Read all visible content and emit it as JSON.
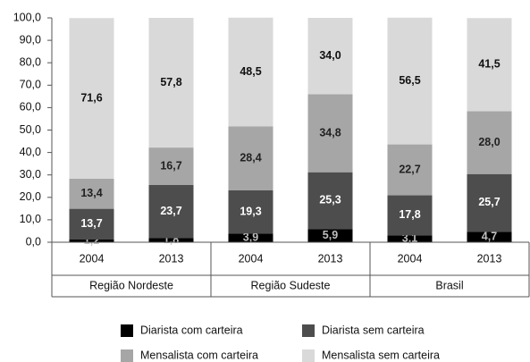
{
  "chart_data": {
    "type": "stacked_bar",
    "categories": [
      "2004",
      "2013",
      "2004",
      "2013",
      "2004",
      "2013"
    ],
    "groups": [
      "Região Nordeste",
      "Região Sudeste",
      "Brasil"
    ],
    "series": [
      {
        "name": "Diarista com carteira",
        "color": "#000000",
        "label_color": "#bfbfbf",
        "values": [
          1.2,
          1.8,
          3.9,
          5.9,
          3.1,
          4.7
        ],
        "value_labels": [
          "1,2",
          "1,8",
          "3,9",
          "5,9",
          "3,1",
          "4,7"
        ]
      },
      {
        "name": "Diarista sem carteira",
        "color": "#4d4d4d",
        "label_color": "#ffffff",
        "values": [
          13.7,
          23.7,
          19.3,
          25.3,
          17.8,
          25.7
        ],
        "value_labels": [
          "13,7",
          "23,7",
          "19,3",
          "25,3",
          "17,8",
          "25,7"
        ]
      },
      {
        "name": "Mensalista com carteira",
        "color": "#a6a6a6",
        "label_color": "#222222",
        "values": [
          13.4,
          16.7,
          28.4,
          34.8,
          22.7,
          28.0
        ],
        "value_labels": [
          "13,4",
          "16,7",
          "28,4",
          "34,8",
          "22,7",
          "28,0"
        ]
      },
      {
        "name": "Mensalista sem carteira",
        "color": "#d9d9d9",
        "label_color": "#111111",
        "values": [
          71.6,
          57.8,
          48.5,
          34.0,
          56.5,
          41.5
        ],
        "value_labels": [
          "71,6",
          "57,8",
          "48,5",
          "34,0",
          "56,5",
          "41,5"
        ]
      }
    ],
    "ylim": [
      0,
      100
    ],
    "yticks": [
      {
        "value": 0,
        "label": "0,0"
      },
      {
        "value": 10,
        "label": "10,0"
      },
      {
        "value": 20,
        "label": "20,0"
      },
      {
        "value": 30,
        "label": "30,0"
      },
      {
        "value": 40,
        "label": "40,0"
      },
      {
        "value": 50,
        "label": "50,0"
      },
      {
        "value": 60,
        "label": "60,0"
      },
      {
        "value": 70,
        "label": "70,0"
      },
      {
        "value": 80,
        "label": "80,0"
      },
      {
        "value": 90,
        "label": "90,0"
      },
      {
        "value": 100,
        "label": "100,0"
      }
    ]
  }
}
